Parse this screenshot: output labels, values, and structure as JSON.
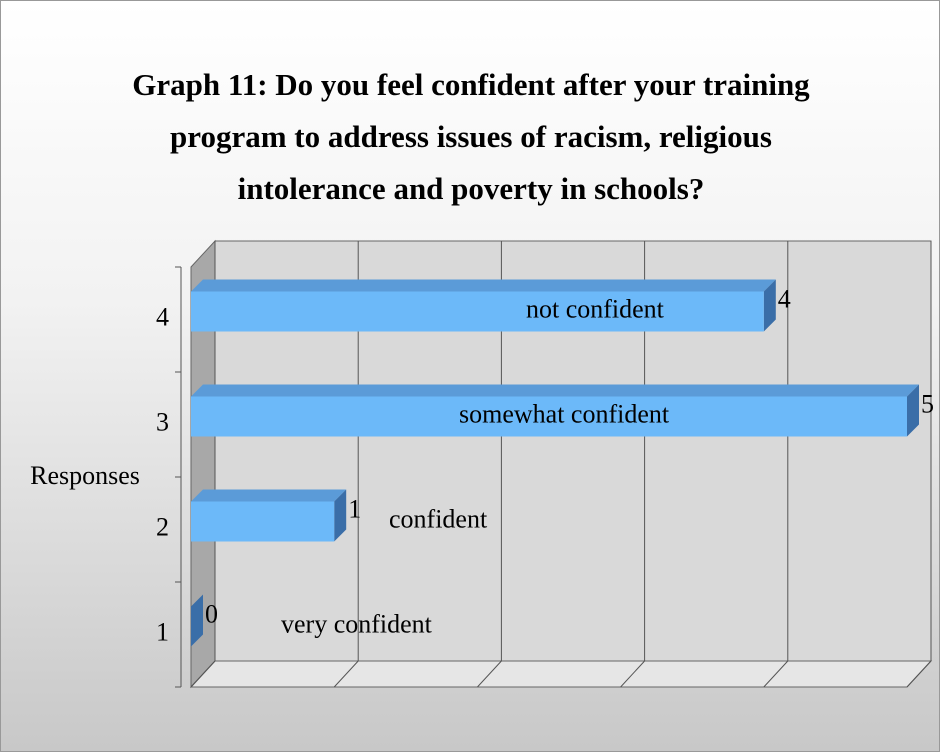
{
  "chart_data": {
    "type": "bar3d_h",
    "title": "Graph 11: Do you feel confident after your training program to address issues of racism, religious intolerance and poverty in schools?",
    "y_label": "Responses",
    "categories": [
      "1",
      "2",
      "3",
      "4"
    ],
    "values": [
      0,
      1,
      5,
      4
    ],
    "annotations": [
      "very confident",
      "confident",
      "somewhat confident",
      "not confident"
    ],
    "color": "#6cb9f9",
    "xlim": [
      0,
      5
    ],
    "xticks": [
      0,
      1,
      2,
      3,
      4,
      5
    ],
    "grid": true
  }
}
